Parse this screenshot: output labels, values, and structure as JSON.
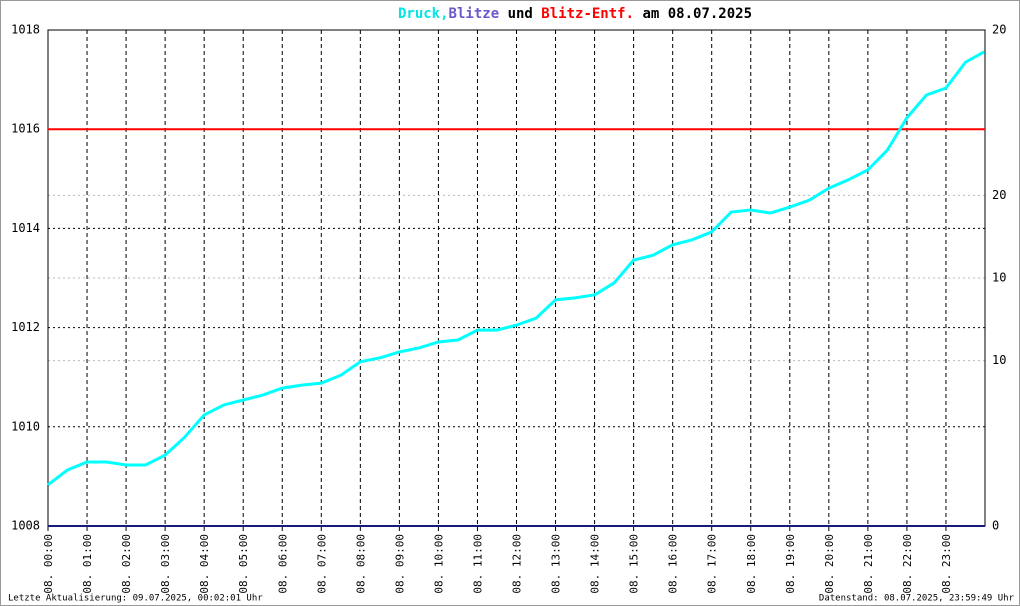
{
  "chart_data": {
    "type": "line",
    "title_parts": [
      {
        "text": "Druck,",
        "color": "#00e5e5"
      },
      {
        "text": "Blitze",
        "color": "#6a5acd"
      },
      {
        "text": "und",
        "color": "#000000"
      },
      {
        "text": "Blitz-Entf.",
        "color": "#ff0000"
      },
      {
        "text": "am 08.07.2025",
        "color": "#000000"
      }
    ],
    "xlim": [
      0,
      24
    ],
    "xticks": [
      {
        "value": 0,
        "label": "08. 00:00"
      },
      {
        "value": 1,
        "label": "08. 01:00"
      },
      {
        "value": 2,
        "label": "08. 02:00"
      },
      {
        "value": 3,
        "label": "08. 03:00"
      },
      {
        "value": 4,
        "label": "08. 04:00"
      },
      {
        "value": 5,
        "label": "08. 05:00"
      },
      {
        "value": 6,
        "label": "08. 06:00"
      },
      {
        "value": 7,
        "label": "08. 07:00"
      },
      {
        "value": 8,
        "label": "08. 08:00"
      },
      {
        "value": 9,
        "label": "08. 09:00"
      },
      {
        "value": 10,
        "label": "08. 10:00"
      },
      {
        "value": 11,
        "label": "08. 11:00"
      },
      {
        "value": 12,
        "label": "08. 12:00"
      },
      {
        "value": 13,
        "label": "08. 13:00"
      },
      {
        "value": 14,
        "label": "08. 14:00"
      },
      {
        "value": 15,
        "label": "08. 15:00"
      },
      {
        "value": 16,
        "label": "08. 16:00"
      },
      {
        "value": 17,
        "label": "08. 17:00"
      },
      {
        "value": 18,
        "label": "08. 18:00"
      },
      {
        "value": 19,
        "label": "08. 19:00"
      },
      {
        "value": 20,
        "label": "08. 20:00"
      },
      {
        "value": 21,
        "label": "08. 21:00"
      },
      {
        "value": 22,
        "label": "08. 22:00"
      },
      {
        "value": 23,
        "label": "08. 23:00"
      }
    ],
    "ylim": [
      1008,
      1018
    ],
    "yticks": [
      1008,
      1010,
      1012,
      1014,
      1016,
      1018
    ],
    "y2lim": [
      0,
      20
    ],
    "y2ticks": [
      0,
      10,
      20
    ],
    "y3lim": [
      0,
      30
    ],
    "y3ticks": [
      10,
      20
    ],
    "y3color": "#ff0000",
    "grid": true,
    "series": [
      {
        "name": "Druck",
        "color": "#00ffff",
        "x": [
          0,
          0.5,
          1,
          1.5,
          2,
          2.5,
          3,
          3.5,
          4,
          4.5,
          5,
          5.5,
          6,
          6.5,
          7,
          7.5,
          8,
          8.5,
          9,
          9.5,
          10,
          10.5,
          11,
          11.5,
          12,
          12.5,
          13,
          13.5,
          14,
          14.5,
          15,
          15.5,
          16,
          16.5,
          17,
          17.5,
          18,
          18.5,
          19,
          19.5,
          20,
          20.5,
          21,
          21.5,
          22,
          22.5,
          23,
          23.5,
          23.98
        ],
        "values": [
          1008.83,
          1009.13,
          1009.29,
          1009.29,
          1009.23,
          1009.23,
          1009.43,
          1009.79,
          1010.24,
          1010.44,
          1010.54,
          1010.64,
          1010.78,
          1010.84,
          1010.88,
          1011.04,
          1011.31,
          1011.39,
          1011.51,
          1011.59,
          1011.71,
          1011.75,
          1011.95,
          1011.95,
          1012.05,
          1012.19,
          1012.56,
          1012.6,
          1012.66,
          1012.9,
          1013.36,
          1013.46,
          1013.67,
          1013.77,
          1013.93,
          1014.33,
          1014.37,
          1014.31,
          1014.43,
          1014.57,
          1014.81,
          1014.98,
          1015.18,
          1015.58,
          1016.23,
          1016.69,
          1016.83,
          1017.35,
          1017.56
        ]
      },
      {
        "name": "Blitze",
        "color": "#1a1a7a",
        "axis": "y2",
        "x": [
          0,
          24
        ],
        "values": [
          0,
          0
        ]
      },
      {
        "name": "Blitz-Entf.",
        "color": "#ff0000",
        "axis": "y3",
        "x": [
          0,
          24
        ],
        "values": [
          24,
          24
        ]
      }
    ],
    "footer_left": "Letzte Aktualisierung: 09.07.2025, 00:02:01 Uhr",
    "footer_right": "Datenstand: 08.07.2025, 23:59:49 Uhr"
  }
}
